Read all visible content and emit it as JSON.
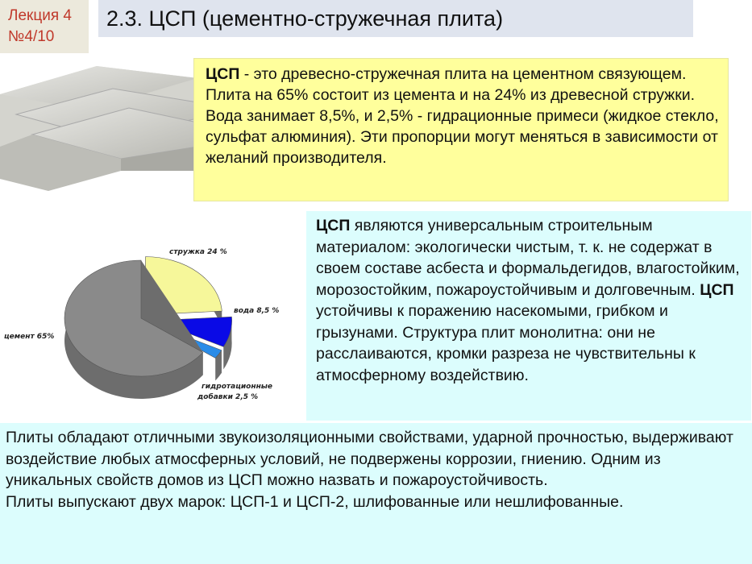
{
  "header": {
    "lecture": "Лекция 4",
    "number": "№4/10",
    "title": "2.3. ЦСП (цементно-стружечная плита)"
  },
  "definition": {
    "term": "ЦСП",
    "text": " - это древесно-стружечная плита на цементном связующем. Плита на 65% состоит из цемента и на 24% из древесной стружки. Вода занимает 8,5%, и 2,5% - гидрационные примеси (жидкое стекло, сульфат алюминия). Эти пропорции могут меняться в зависимости от желаний производителя."
  },
  "properties": {
    "term1": "ЦСП",
    "text1": " являются универсальным строительным материалом: экологически чистым, т. к. не содержат в своем составе асбеста и формальдегидов, влагостойким, морозостойким, пожароустойчивым и долговечным. ",
    "term2": "ЦСП",
    "text2": " устойчивы к поражению насекомыми, грибком и грызунами. Структура плит монолитна: они не расслаиваются, кромки разреза не чувствительны к атмосферному воздействию."
  },
  "bottom": {
    "para1": "Плиты обладают отличными звукоизоляционными свойствами, ударной прочностью, выдерживают воздействие любых атмосферных условий, не подвержены коррозии, гниению. Одним из уникальных свойств домов из ЦСП можно назвать и пожароустойчивость.",
    "para2": "Плиты выпускают двух марок: ЦСП-1 и ЦСП-2, шлифованные или нешлифованные."
  },
  "chart_data": {
    "type": "pie",
    "three_d": true,
    "slices": [
      {
        "label": "цемент 65%",
        "value": 65,
        "color": "#8a8a8a"
      },
      {
        "label": "стружка 24 %",
        "value": 24,
        "color": "#f6f79a"
      },
      {
        "label": "вода  8,5  %",
        "value": 8.5,
        "color": "#0a0ae6"
      },
      {
        "label1": "гидротационные",
        "label2": "добавки 2,5 %",
        "value": 2.5,
        "color": "#2a8ce8"
      }
    ]
  }
}
